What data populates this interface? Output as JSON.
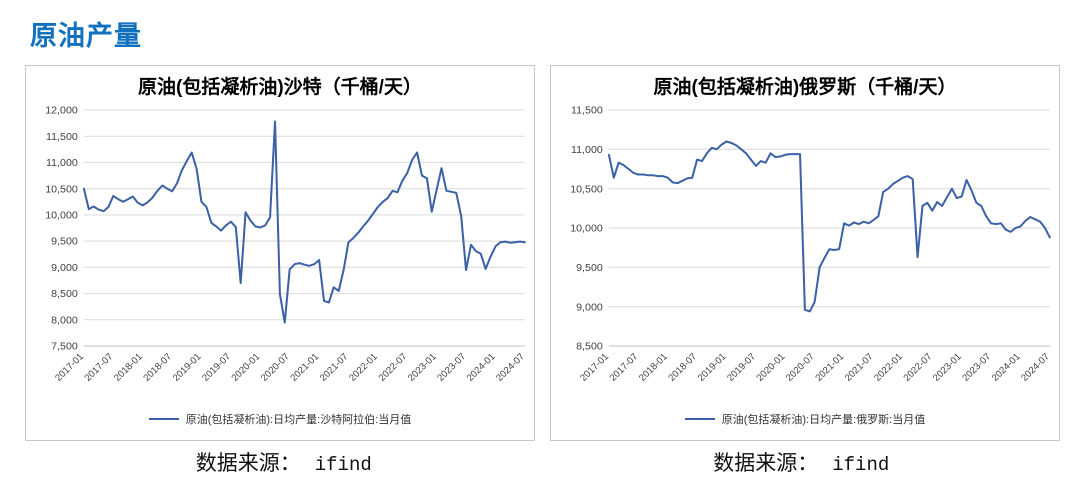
{
  "page": {
    "title": "原油产量",
    "title_color": "#1271BD",
    "source": {
      "label": "数据来源：",
      "value": "ifind"
    }
  },
  "chart_data": [
    {
      "type": "line",
      "title": "原油(包括凝析油)沙特（千桶/天）",
      "xlabel": "",
      "ylabel": "",
      "ylim": [
        7500,
        12000
      ],
      "ytick_step": 500,
      "yticks": [
        7500,
        8000,
        8500,
        9000,
        9500,
        10000,
        10500,
        11000,
        11500,
        12000
      ],
      "grid": true,
      "legend_position": "bottom",
      "line_color": "#3C61A6",
      "x_tick_every": 6,
      "categories": [
        "2017-01",
        "2017-02",
        "2017-03",
        "2017-04",
        "2017-05",
        "2017-06",
        "2017-07",
        "2017-08",
        "2017-09",
        "2017-10",
        "2017-11",
        "2017-12",
        "2018-01",
        "2018-02",
        "2018-03",
        "2018-04",
        "2018-05",
        "2018-06",
        "2018-07",
        "2018-08",
        "2018-09",
        "2018-10",
        "2018-11",
        "2018-12",
        "2019-01",
        "2019-02",
        "2019-03",
        "2019-04",
        "2019-05",
        "2019-06",
        "2019-07",
        "2019-08",
        "2019-09",
        "2019-10",
        "2019-11",
        "2019-12",
        "2020-01",
        "2020-02",
        "2020-03",
        "2020-04",
        "2020-05",
        "2020-06",
        "2020-07",
        "2020-08",
        "2020-09",
        "2020-10",
        "2020-11",
        "2020-12",
        "2021-01",
        "2021-02",
        "2021-03",
        "2021-04",
        "2021-05",
        "2021-06",
        "2021-07",
        "2021-08",
        "2021-09",
        "2021-10",
        "2021-11",
        "2021-12",
        "2022-01",
        "2022-02",
        "2022-03",
        "2022-04",
        "2022-05",
        "2022-06",
        "2022-07",
        "2022-08",
        "2022-09",
        "2022-10",
        "2022-11",
        "2022-12",
        "2023-01",
        "2023-02",
        "2023-03",
        "2023-04",
        "2023-05",
        "2023-06",
        "2023-07",
        "2023-08",
        "2023-09",
        "2023-10",
        "2023-11",
        "2023-12",
        "2024-01",
        "2024-02",
        "2024-03",
        "2024-04",
        "2024-05",
        "2024-06",
        "2024-07"
      ],
      "series": [
        {
          "name": "原油(包括凝析油):日均产量:沙特阿拉伯:当月值",
          "values": [
            10500,
            10110,
            10160,
            10100,
            10070,
            10150,
            10360,
            10300,
            10250,
            10300,
            10350,
            10230,
            10180,
            10240,
            10330,
            10460,
            10560,
            10500,
            10450,
            10600,
            10850,
            11030,
            11190,
            10880,
            10250,
            10150,
            9850,
            9780,
            9700,
            9800,
            9870,
            9770,
            8700,
            10050,
            9890,
            9780,
            9760,
            9800,
            9950,
            11780,
            8490,
            7950,
            8960,
            9060,
            9080,
            9050,
            9030,
            9060,
            9140,
            8360,
            8330,
            8620,
            8550,
            8950,
            9480,
            9560,
            9660,
            9780,
            9890,
            10020,
            10150,
            10250,
            10320,
            10460,
            10430,
            10650,
            10800,
            11050,
            11190,
            10750,
            10700,
            10060,
            10480,
            10890,
            10460,
            10440,
            10420,
            9980,
            8950,
            9430,
            9310,
            9260,
            8970,
            9200,
            9400,
            9480,
            9490,
            9470,
            9480,
            9490,
            9480
          ]
        }
      ]
    },
    {
      "type": "line",
      "title": "原油(包括凝析油)俄罗斯（千桶/天）",
      "xlabel": "",
      "ylabel": "",
      "ylim": [
        8500,
        11500
      ],
      "ytick_step": 500,
      "yticks": [
        8500,
        9000,
        9500,
        10000,
        10500,
        11000,
        11500
      ],
      "grid": true,
      "legend_position": "bottom",
      "line_color": "#3C61A6",
      "x_tick_every": 6,
      "categories": [
        "2017-01",
        "2017-02",
        "2017-03",
        "2017-04",
        "2017-05",
        "2017-06",
        "2017-07",
        "2017-08",
        "2017-09",
        "2017-10",
        "2017-11",
        "2017-12",
        "2018-01",
        "2018-02",
        "2018-03",
        "2018-04",
        "2018-05",
        "2018-06",
        "2018-07",
        "2018-08",
        "2018-09",
        "2018-10",
        "2018-11",
        "2018-12",
        "2019-01",
        "2019-02",
        "2019-03",
        "2019-04",
        "2019-05",
        "2019-06",
        "2019-07",
        "2019-08",
        "2019-09",
        "2019-10",
        "2019-11",
        "2019-12",
        "2020-01",
        "2020-02",
        "2020-03",
        "2020-04",
        "2020-05",
        "2020-06",
        "2020-07",
        "2020-08",
        "2020-09",
        "2020-10",
        "2020-11",
        "2020-12",
        "2021-01",
        "2021-02",
        "2021-03",
        "2021-04",
        "2021-05",
        "2021-06",
        "2021-07",
        "2021-08",
        "2021-09",
        "2021-10",
        "2021-11",
        "2021-12",
        "2022-01",
        "2022-02",
        "2022-03",
        "2022-04",
        "2022-05",
        "2022-06",
        "2022-07",
        "2022-08",
        "2022-09",
        "2022-10",
        "2022-11",
        "2022-12",
        "2023-01",
        "2023-02",
        "2023-03",
        "2023-04",
        "2023-05",
        "2023-06",
        "2023-07",
        "2023-08",
        "2023-09",
        "2023-10",
        "2023-11",
        "2023-12",
        "2024-01",
        "2024-02",
        "2024-03",
        "2024-04",
        "2024-05",
        "2024-06",
        "2024-07"
      ],
      "series": [
        {
          "name": "原油(包括凝析油):日均产量:俄罗斯:当月值",
          "values": [
            10930,
            10640,
            10830,
            10800,
            10750,
            10700,
            10680,
            10680,
            10670,
            10670,
            10660,
            10660,
            10640,
            10580,
            10570,
            10600,
            10630,
            10640,
            10870,
            10850,
            10950,
            11020,
            11000,
            11060,
            11100,
            11080,
            11050,
            11000,
            10950,
            10870,
            10790,
            10850,
            10830,
            10950,
            10900,
            10910,
            10930,
            10940,
            10940,
            10940,
            8960,
            8940,
            9060,
            9500,
            9620,
            9730,
            9720,
            9730,
            10060,
            10030,
            10070,
            10050,
            10080,
            10060,
            10100,
            10150,
            10460,
            10500,
            10560,
            10600,
            10640,
            10660,
            10620,
            9630,
            10280,
            10320,
            10220,
            10330,
            10280,
            10390,
            10500,
            10380,
            10400,
            10610,
            10480,
            10320,
            10280,
            10150,
            10060,
            10050,
            10060,
            9980,
            9950,
            10000,
            10020,
            10090,
            10140,
            10110,
            10080,
            10000,
            9880
          ]
        }
      ]
    }
  ]
}
